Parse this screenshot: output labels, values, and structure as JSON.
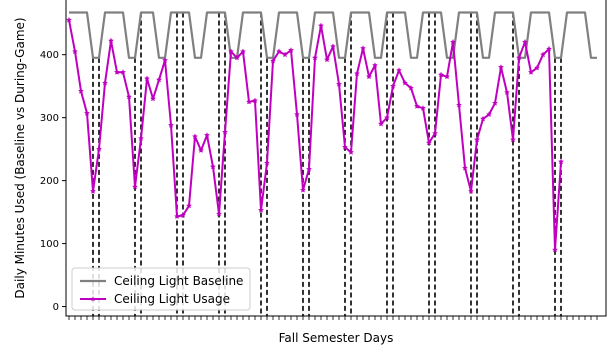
{
  "chart_data": {
    "type": "line",
    "xlabel": "Fall Semester Days",
    "ylabel": "Daily Minutes Used (Baseline vs During-Game)",
    "ylim": [
      -15,
      490
    ],
    "yticks": [
      0,
      100,
      200,
      300,
      400
    ],
    "x": [
      1,
      2,
      3,
      4,
      5,
      6,
      7,
      8,
      9,
      10,
      11,
      12,
      13,
      14,
      15,
      16,
      17,
      18,
      19,
      20,
      21,
      22,
      23,
      24,
      25,
      26,
      27,
      28,
      29,
      30,
      31,
      32,
      33,
      34,
      35,
      36,
      37,
      38,
      39,
      40,
      41,
      42,
      43,
      44,
      45,
      46,
      47,
      48,
      49,
      50,
      51,
      52,
      53,
      54,
      55,
      56,
      57,
      58,
      59,
      60,
      61,
      62,
      63,
      64,
      65,
      66,
      67,
      68,
      69,
      70,
      71,
      72,
      73,
      74,
      75,
      76,
      77,
      78,
      79,
      80,
      81,
      82,
      83,
      84,
      85,
      86,
      87,
      88,
      89
    ],
    "xlim": [
      0.5,
      90.5
    ],
    "x_ticks_unlabeled": true,
    "grid": false,
    "legend_position": "lower-left",
    "series": [
      {
        "name": "Ceiling Light Baseline",
        "color": "#808080",
        "marker": "none",
        "values": [
          467,
          467,
          467,
          467,
          395,
          395,
          467,
          467,
          467,
          467,
          395,
          395,
          467,
          467,
          467,
          395,
          395,
          467,
          467,
          467,
          467,
          395,
          395,
          467,
          467,
          467,
          467,
          395,
          395,
          467,
          467,
          467,
          467,
          395,
          395,
          467,
          467,
          467,
          467,
          395,
          395,
          467,
          467,
          467,
          467,
          395,
          395,
          467,
          467,
          467,
          467,
          395,
          395,
          467,
          467,
          467,
          467,
          395,
          395,
          467,
          467,
          467,
          467,
          395,
          395,
          467,
          467,
          467,
          467,
          395,
          395,
          467,
          467,
          467,
          467,
          395,
          395,
          467,
          467,
          467,
          467,
          395,
          395,
          467,
          467,
          467,
          467,
          395,
          395
        ]
      },
      {
        "name": "Ceiling Light Usage",
        "color": "#c000c0",
        "marker": "star",
        "values": [
          455,
          405,
          342,
          307,
          183,
          250,
          355,
          422,
          372,
          372,
          333,
          190,
          267,
          362,
          330,
          360,
          391,
          288,
          143,
          145,
          160,
          270,
          248,
          272,
          222,
          147,
          277,
          405,
          395,
          405,
          325,
          327,
          153,
          228,
          390,
          405,
          400,
          407,
          305,
          185,
          218,
          395,
          446,
          392,
          413,
          353,
          253,
          245,
          370,
          410,
          365,
          383,
          290,
          300,
          350,
          375,
          355,
          347,
          318,
          315,
          260,
          275,
          368,
          365,
          420,
          320,
          220,
          183,
          265,
          298,
          305,
          323,
          380,
          340,
          265,
          395,
          420,
          372,
          379,
          400,
          409,
          90,
          230,
          null,
          null,
          null,
          null,
          null,
          null
        ]
      }
    ],
    "game_day_markers": [
      5,
      6,
      12,
      13,
      19,
      20,
      26,
      27,
      33,
      34,
      40,
      41,
      47,
      48,
      54,
      55,
      61,
      62,
      68,
      69,
      75,
      76,
      82,
      83
    ]
  }
}
